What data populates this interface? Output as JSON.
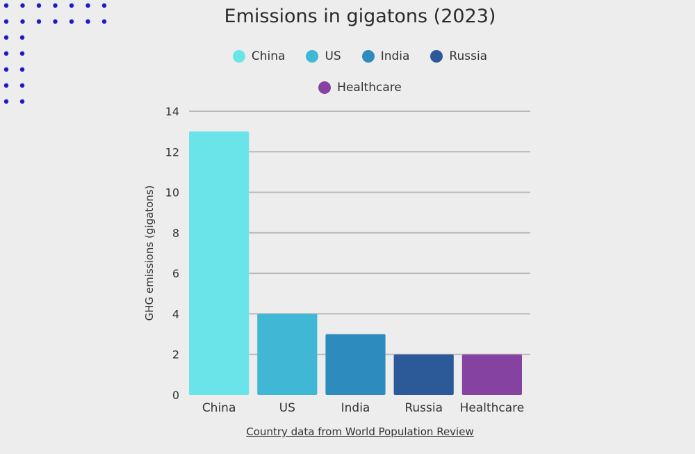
{
  "chart_data": {
    "type": "bar",
    "title": "Emissions in gigatons (2023)",
    "xlabel": "",
    "ylabel": "GHG emissions (gigatons)",
    "categories": [
      "China",
      "US",
      "India",
      "Russia",
      "Healthcare"
    ],
    "values": [
      13,
      4,
      3,
      2,
      2
    ],
    "colors": [
      "#6ae4e8",
      "#41b7d6",
      "#2d8bbd",
      "#2c5a99",
      "#8642a0"
    ],
    "ylim": [
      0,
      14
    ],
    "yticks": [
      0,
      2,
      4,
      6,
      8,
      10,
      12,
      14
    ],
    "grid": true,
    "legend": {
      "placement": "top",
      "items": [
        {
          "label": "China",
          "color": "#6ae4e8"
        },
        {
          "label": "US",
          "color": "#41b7d6"
        },
        {
          "label": "India",
          "color": "#2d8bbd"
        },
        {
          "label": "Russia",
          "color": "#2c5a99"
        },
        {
          "label": "Healthcare",
          "color": "#8642a0"
        }
      ]
    },
    "source": "Country data from World Population Review"
  },
  "decoration": {
    "dot_color": "#1a1acc"
  }
}
